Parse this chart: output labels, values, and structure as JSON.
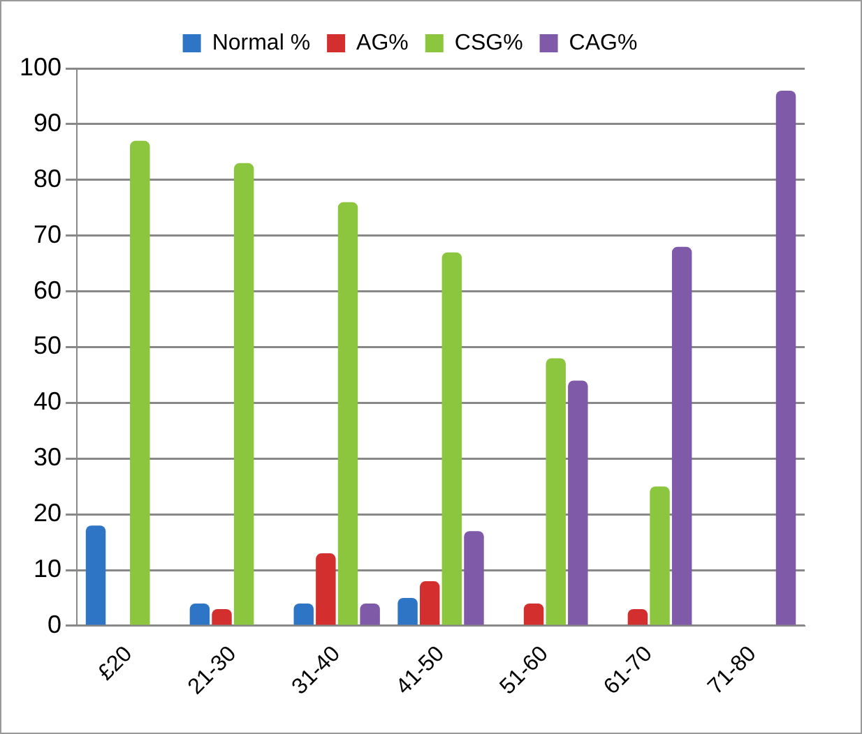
{
  "chart_data": {
    "type": "bar",
    "categories": [
      "£20",
      "21-30",
      "31-40",
      "41-50",
      "51-60",
      "61-70",
      "71-80"
    ],
    "series": [
      {
        "name": "Normal %",
        "color": "#2f75c6",
        "values": [
          18,
          4,
          4,
          5,
          0,
          0,
          0
        ]
      },
      {
        "name": "AG%",
        "color": "#d32f2f",
        "values": [
          0,
          3,
          13,
          8,
          4,
          3,
          0
        ]
      },
      {
        "name": "CSG%",
        "color": "#8cc63f",
        "values": [
          87,
          83,
          76,
          67,
          48,
          25,
          0
        ]
      },
      {
        "name": "CAG%",
        "color": "#7f5aa8",
        "values": [
          0,
          0,
          4,
          17,
          44,
          68,
          96
        ]
      }
    ],
    "ylim": [
      0,
      100
    ],
    "yticks": [
      0,
      10,
      20,
      30,
      40,
      50,
      60,
      70,
      80,
      90,
      100
    ],
    "grid": "y",
    "legend": "top"
  }
}
